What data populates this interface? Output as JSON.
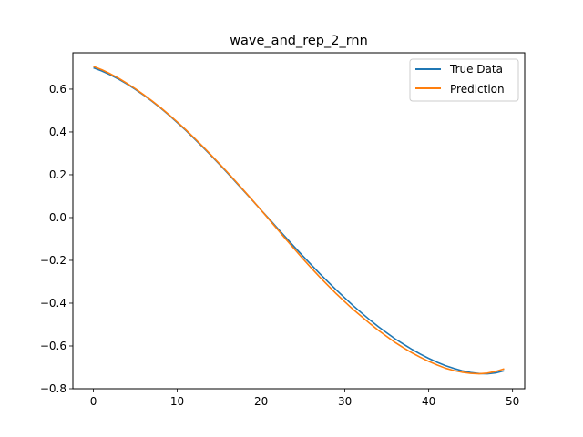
{
  "chart_data": {
    "type": "line",
    "title": "wave_and_rep_2_rnn",
    "xlabel": "",
    "ylabel": "",
    "xlim": [
      -2.45,
      51.45
    ],
    "ylim": [
      -0.8,
      0.77
    ],
    "xticks": [
      0,
      10,
      20,
      30,
      40,
      50
    ],
    "xtick_labels": [
      "0",
      "10",
      "20",
      "30",
      "40",
      "50"
    ],
    "yticks": [
      -0.8,
      -0.6,
      -0.4,
      -0.2,
      0.0,
      0.2,
      0.4,
      0.6
    ],
    "ytick_labels": [
      "−0.8",
      "−0.6",
      "−0.4",
      "−0.2",
      "0.0",
      "0.2",
      "0.4",
      "0.6"
    ],
    "grid": false,
    "legend_position": "upper right",
    "x": [
      0,
      1,
      2,
      3,
      4,
      5,
      6,
      7,
      8,
      9,
      10,
      11,
      12,
      13,
      14,
      15,
      16,
      17,
      18,
      19,
      20,
      21,
      22,
      23,
      24,
      25,
      26,
      27,
      28,
      29,
      30,
      31,
      32,
      33,
      34,
      35,
      36,
      37,
      38,
      39,
      40,
      41,
      42,
      43,
      44,
      45,
      46,
      47,
      48,
      49
    ],
    "series": [
      {
        "name": "True Data",
        "color": "#1f77b4",
        "values": [
          0.7,
          0.685,
          0.667,
          0.647,
          0.624,
          0.599,
          0.572,
          0.543,
          0.512,
          0.479,
          0.444,
          0.408,
          0.37,
          0.331,
          0.291,
          0.25,
          0.208,
          0.165,
          0.122,
          0.079,
          0.035,
          -0.008,
          -0.052,
          -0.095,
          -0.138,
          -0.18,
          -0.221,
          -0.262,
          -0.301,
          -0.339,
          -0.376,
          -0.412,
          -0.446,
          -0.479,
          -0.51,
          -0.539,
          -0.567,
          -0.592,
          -0.616,
          -0.638,
          -0.658,
          -0.676,
          -0.692,
          -0.705,
          -0.716,
          -0.724,
          -0.729,
          -0.73,
          -0.726,
          -0.716
        ]
      },
      {
        "name": "Prediction",
        "color": "#ff7f0e",
        "values": [
          0.706,
          0.691,
          0.672,
          0.651,
          0.627,
          0.602,
          0.574,
          0.545,
          0.514,
          0.481,
          0.447,
          0.411,
          0.373,
          0.334,
          0.294,
          0.253,
          0.211,
          0.168,
          0.124,
          0.08,
          0.035,
          -0.011,
          -0.057,
          -0.103,
          -0.148,
          -0.193,
          -0.236,
          -0.278,
          -0.318,
          -0.357,
          -0.394,
          -0.43,
          -0.463,
          -0.496,
          -0.527,
          -0.556,
          -0.584,
          -0.609,
          -0.632,
          -0.653,
          -0.672,
          -0.689,
          -0.704,
          -0.715,
          -0.723,
          -0.728,
          -0.73,
          -0.727,
          -0.719,
          -0.707
        ]
      }
    ]
  }
}
